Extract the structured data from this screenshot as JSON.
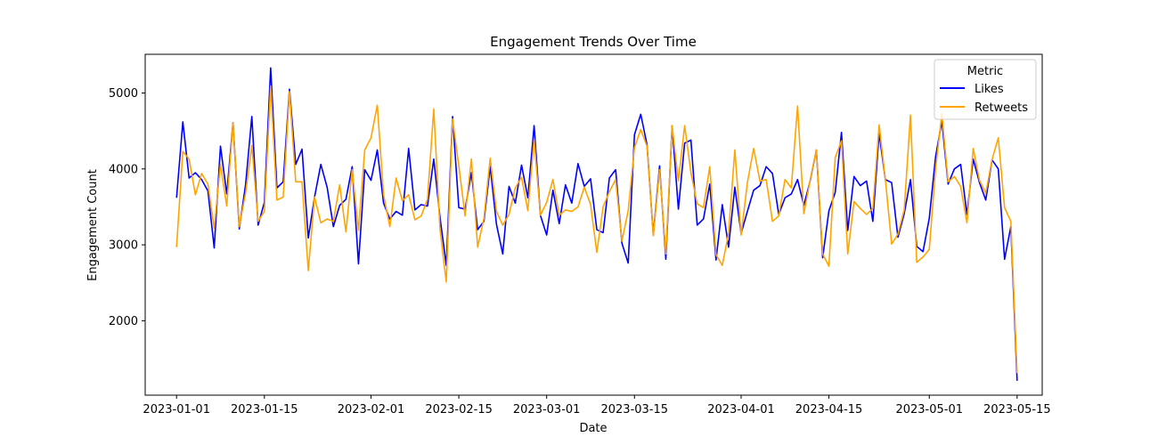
{
  "chart_data": {
    "type": "line",
    "title": "Engagement Trends Over Time",
    "xlabel": "Date",
    "ylabel": "Engagement Count",
    "x_start": "2023-01-01",
    "xlim": [
      "2022-12-27",
      "2023-05-19"
    ],
    "ylim": [
      1020,
      5510
    ],
    "x_ticks": [
      "2023-01-01",
      "2023-01-15",
      "2023-02-01",
      "2023-02-15",
      "2023-03-01",
      "2023-03-15",
      "2023-04-01",
      "2023-04-15",
      "2023-05-01",
      "2023-05-15"
    ],
    "y_ticks": [
      2000,
      3000,
      4000,
      5000
    ],
    "grid": false,
    "legend": {
      "title": "Metric",
      "position": "top-right"
    },
    "series": [
      {
        "name": "Likes",
        "color": "#0000ff",
        "values": [
          3620,
          4620,
          3880,
          3950,
          3860,
          3710,
          2960,
          4300,
          3670,
          4610,
          3210,
          3790,
          4690,
          3260,
          3560,
          5330,
          3750,
          3830,
          5050,
          4060,
          4260,
          3090,
          3630,
          4060,
          3760,
          3240,
          3520,
          3600,
          4030,
          2750,
          3990,
          3850,
          4250,
          3550,
          3340,
          3440,
          3390,
          4270,
          3460,
          3530,
          3510,
          4130,
          3360,
          2730,
          4690,
          3490,
          3470,
          3950,
          3200,
          3310,
          4030,
          3270,
          2880,
          3770,
          3550,
          4050,
          3620,
          4570,
          3390,
          3130,
          3720,
          3280,
          3790,
          3550,
          4070,
          3770,
          3870,
          3200,
          3160,
          3880,
          3990,
          3020,
          2760,
          4450,
          4720,
          4320,
          3130,
          4040,
          2810,
          4570,
          3470,
          4340,
          4380,
          3260,
          3340,
          3800,
          2800,
          3530,
          2970,
          3760,
          3150,
          3440,
          3720,
          3780,
          4030,
          3940,
          3400,
          3620,
          3670,
          3860,
          3520,
          3840,
          4250,
          2830,
          3450,
          3690,
          4480,
          3190,
          3900,
          3780,
          3840,
          3310,
          4470,
          3860,
          3820,
          3100,
          3410,
          3860,
          2980,
          2910,
          3350,
          4160,
          4630,
          3800,
          4000,
          4060,
          3400,
          4130,
          3820,
          3590,
          4120,
          4000,
          2810,
          3240,
          1210
        ]
      },
      {
        "name": "Retweets",
        "color": "#ffa500",
        "values": [
          2970,
          4230,
          4130,
          3660,
          3940,
          3800,
          3220,
          4060,
          3510,
          4610,
          3240,
          3680,
          4310,
          3310,
          3440,
          5090,
          3590,
          3630,
          5020,
          3830,
          3830,
          2660,
          3630,
          3290,
          3340,
          3310,
          3790,
          3170,
          3990,
          3190,
          4250,
          4410,
          4840,
          3660,
          3240,
          3880,
          3580,
          3660,
          3330,
          3380,
          3600,
          4790,
          3200,
          2510,
          4660,
          4040,
          3380,
          4130,
          2970,
          3350,
          4140,
          3440,
          3260,
          3400,
          3750,
          3890,
          3450,
          4390,
          3390,
          3560,
          3860,
          3390,
          3460,
          3440,
          3500,
          3760,
          3530,
          2900,
          3500,
          3700,
          3860,
          3050,
          3450,
          4280,
          4520,
          4300,
          3120,
          3990,
          2880,
          4570,
          3840,
          4570,
          3950,
          3540,
          3490,
          4030,
          2870,
          2730,
          3150,
          4250,
          3130,
          3820,
          4270,
          3840,
          3860,
          3310,
          3380,
          3860,
          3750,
          4830,
          3410,
          3850,
          4250,
          2880,
          2720,
          4150,
          4370,
          2880,
          3570,
          3480,
          3400,
          3480,
          4580,
          3860,
          3010,
          3140,
          3460,
          4710,
          2770,
          2840,
          2940,
          4000,
          4730,
          3830,
          3900,
          3770,
          3290,
          4270,
          3850,
          3680,
          4120,
          4410,
          3490,
          3310,
          1310
        ]
      }
    ]
  }
}
